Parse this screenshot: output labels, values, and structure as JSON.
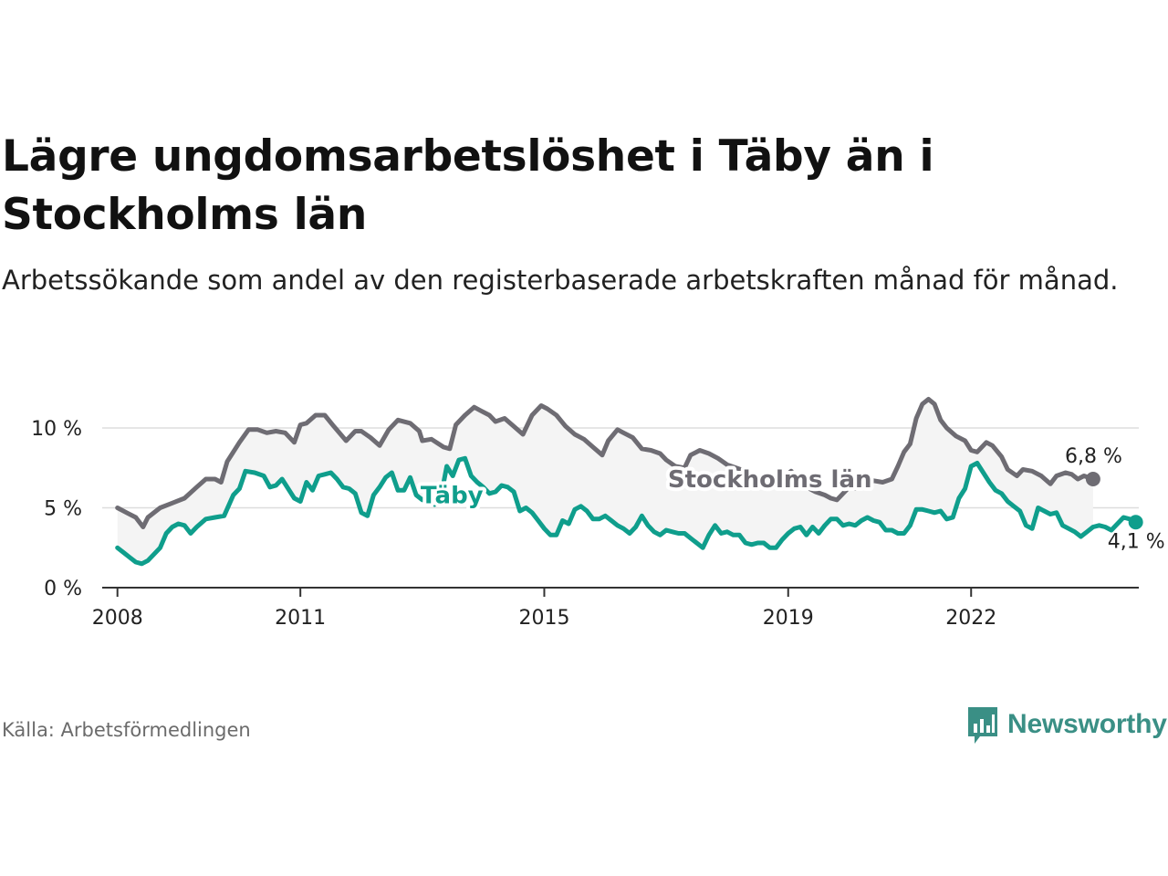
{
  "title": "Lägre ungdomsarbetslöshet i Täby än i Stockholms län",
  "subtitle": "Arbetssökande som andel av den registerbaserade arbetskraften månad för månad.",
  "source": "Källa: Arbetsförmedlingen",
  "brand": "Newsworthy",
  "colors": {
    "stockholm": "#6e6c73",
    "taby": "#0f9e8c",
    "band": "#f4f4f4",
    "grid": "#dddddd",
    "axis": "#333333",
    "brand": "#3a8f85"
  },
  "chart_data": {
    "type": "line",
    "title": "Lägre ungdomsarbetslöshet i Täby än i Stockholms län",
    "xlabel": "",
    "ylabel": "",
    "ylim": [
      0,
      12
    ],
    "xlim": [
      2007.75,
      2024.75
    ],
    "y_ticks": [
      0,
      5,
      10
    ],
    "y_tick_labels": [
      "0 %",
      "5 %",
      "10 %"
    ],
    "x_ticks": [
      2008,
      2011,
      2015,
      2019,
      2022
    ],
    "x_tick_labels": [
      "2008",
      "2011",
      "2015",
      "2019",
      "2022"
    ],
    "series": [
      {
        "name": "Stockholms län",
        "key": "stockholm",
        "end_label": "6,8 %",
        "points": [
          [
            2008.0,
            5.0
          ],
          [
            2008.15,
            4.7
          ],
          [
            2008.3,
            4.4
          ],
          [
            2008.42,
            3.8
          ],
          [
            2008.5,
            4.4
          ],
          [
            2008.7,
            5.0
          ],
          [
            2008.9,
            5.3
          ],
          [
            2009.1,
            5.6
          ],
          [
            2009.3,
            6.3
          ],
          [
            2009.45,
            6.8
          ],
          [
            2009.6,
            6.8
          ],
          [
            2009.7,
            6.6
          ],
          [
            2009.8,
            7.9
          ],
          [
            2010.0,
            9.1
          ],
          [
            2010.15,
            9.9
          ],
          [
            2010.3,
            9.9
          ],
          [
            2010.45,
            9.7
          ],
          [
            2010.6,
            9.8
          ],
          [
            2010.75,
            9.7
          ],
          [
            2010.9,
            9.1
          ],
          [
            2011.0,
            10.2
          ],
          [
            2011.1,
            10.3
          ],
          [
            2011.25,
            10.8
          ],
          [
            2011.4,
            10.8
          ],
          [
            2011.55,
            10.1
          ],
          [
            2011.75,
            9.2
          ],
          [
            2011.9,
            9.8
          ],
          [
            2012.0,
            9.8
          ],
          [
            2012.15,
            9.4
          ],
          [
            2012.3,
            8.9
          ],
          [
            2012.45,
            9.9
          ],
          [
            2012.6,
            10.5
          ],
          [
            2012.8,
            10.3
          ],
          [
            2012.95,
            9.8
          ],
          [
            2013.0,
            9.2
          ],
          [
            2013.15,
            9.3
          ],
          [
            2013.35,
            8.8
          ],
          [
            2013.45,
            8.7
          ],
          [
            2013.55,
            10.2
          ],
          [
            2013.7,
            10.8
          ],
          [
            2013.85,
            11.3
          ],
          [
            2013.95,
            11.1
          ],
          [
            2014.1,
            10.8
          ],
          [
            2014.2,
            10.4
          ],
          [
            2014.35,
            10.6
          ],
          [
            2014.5,
            10.1
          ],
          [
            2014.65,
            9.6
          ],
          [
            2014.8,
            10.8
          ],
          [
            2014.95,
            11.4
          ],
          [
            2015.05,
            11.2
          ],
          [
            2015.2,
            10.8
          ],
          [
            2015.35,
            10.1
          ],
          [
            2015.5,
            9.6
          ],
          [
            2015.65,
            9.3
          ],
          [
            2015.8,
            8.8
          ],
          [
            2015.95,
            8.3
          ],
          [
            2016.05,
            9.2
          ],
          [
            2016.2,
            9.9
          ],
          [
            2016.3,
            9.7
          ],
          [
            2016.45,
            9.4
          ],
          [
            2016.6,
            8.7
          ],
          [
            2016.75,
            8.6
          ],
          [
            2016.9,
            8.4
          ],
          [
            2017.0,
            8.0
          ],
          [
            2017.15,
            7.6
          ],
          [
            2017.3,
            7.5
          ],
          [
            2017.4,
            8.3
          ],
          [
            2017.55,
            8.6
          ],
          [
            2017.7,
            8.4
          ],
          [
            2017.85,
            8.1
          ],
          [
            2018.0,
            7.7
          ],
          [
            2018.15,
            7.5
          ],
          [
            2018.3,
            7.3
          ],
          [
            2018.45,
            7.0
          ],
          [
            2018.6,
            6.9
          ],
          [
            2018.75,
            6.6
          ],
          [
            2018.9,
            6.8
          ],
          [
            2019.05,
            7.3
          ],
          [
            2019.15,
            6.8
          ],
          [
            2019.3,
            6.3
          ],
          [
            2019.45,
            6.0
          ],
          [
            2019.6,
            5.8
          ],
          [
            2019.7,
            5.6
          ],
          [
            2019.8,
            5.5
          ],
          [
            2019.9,
            5.9
          ],
          [
            2020.0,
            6.3
          ],
          [
            2020.1,
            6.2
          ],
          [
            2020.25,
            6.4
          ],
          [
            2020.4,
            6.7
          ],
          [
            2020.55,
            6.6
          ],
          [
            2020.7,
            6.8
          ],
          [
            2020.8,
            7.6
          ],
          [
            2020.9,
            8.5
          ],
          [
            2021.0,
            9.0
          ],
          [
            2021.1,
            10.6
          ],
          [
            2021.2,
            11.5
          ],
          [
            2021.3,
            11.8
          ],
          [
            2021.4,
            11.5
          ],
          [
            2021.5,
            10.5
          ],
          [
            2021.6,
            10.0
          ],
          [
            2021.75,
            9.5
          ],
          [
            2021.9,
            9.2
          ],
          [
            2022.0,
            8.6
          ],
          [
            2022.1,
            8.5
          ],
          [
            2022.25,
            9.1
          ],
          [
            2022.35,
            8.9
          ],
          [
            2022.5,
            8.2
          ],
          [
            2022.6,
            7.4
          ],
          [
            2022.75,
            7.0
          ],
          [
            2022.85,
            7.4
          ],
          [
            2023.0,
            7.3
          ],
          [
            2023.15,
            7.0
          ],
          [
            2023.3,
            6.5
          ],
          [
            2023.4,
            7.0
          ],
          [
            2023.55,
            7.2
          ],
          [
            2023.65,
            7.1
          ],
          [
            2023.75,
            6.8
          ],
          [
            2023.85,
            7.0
          ],
          [
            2024.0,
            6.8
          ]
        ]
      },
      {
        "name": "Täby",
        "key": "taby",
        "end_label": "4,1 %",
        "points": [
          [
            2008.0,
            2.5
          ],
          [
            2008.1,
            2.2
          ],
          [
            2008.2,
            1.9
          ],
          [
            2008.3,
            1.6
          ],
          [
            2008.4,
            1.5
          ],
          [
            2008.5,
            1.7
          ],
          [
            2008.6,
            2.1
          ],
          [
            2008.7,
            2.5
          ],
          [
            2008.8,
            3.4
          ],
          [
            2008.9,
            3.8
          ],
          [
            2009.0,
            4.0
          ],
          [
            2009.1,
            3.9
          ],
          [
            2009.2,
            3.4
          ],
          [
            2009.3,
            3.8
          ],
          [
            2009.45,
            4.3
          ],
          [
            2009.6,
            4.4
          ],
          [
            2009.75,
            4.5
          ],
          [
            2009.9,
            5.8
          ],
          [
            2010.0,
            6.2
          ],
          [
            2010.1,
            7.3
          ],
          [
            2010.25,
            7.2
          ],
          [
            2010.4,
            7.0
          ],
          [
            2010.5,
            6.3
          ],
          [
            2010.6,
            6.4
          ],
          [
            2010.7,
            6.8
          ],
          [
            2010.8,
            6.2
          ],
          [
            2010.9,
            5.6
          ],
          [
            2011.0,
            5.4
          ],
          [
            2011.1,
            6.6
          ],
          [
            2011.2,
            6.1
          ],
          [
            2011.3,
            7.0
          ],
          [
            2011.4,
            7.1
          ],
          [
            2011.5,
            7.2
          ],
          [
            2011.6,
            6.8
          ],
          [
            2011.7,
            6.3
          ],
          [
            2011.8,
            6.2
          ],
          [
            2011.9,
            5.9
          ],
          [
            2012.0,
            4.7
          ],
          [
            2012.1,
            4.5
          ],
          [
            2012.2,
            5.8
          ],
          [
            2012.3,
            6.3
          ],
          [
            2012.4,
            6.9
          ],
          [
            2012.5,
            7.2
          ],
          [
            2012.6,
            6.1
          ],
          [
            2012.7,
            6.1
          ],
          [
            2012.8,
            6.9
          ],
          [
            2012.9,
            5.8
          ],
          [
            2013.0,
            5.5
          ],
          [
            2013.1,
            5.7
          ],
          [
            2013.2,
            5.2
          ],
          [
            2013.3,
            5.6
          ],
          [
            2013.4,
            7.6
          ],
          [
            2013.5,
            7.0
          ],
          [
            2013.6,
            8.0
          ],
          [
            2013.7,
            8.1
          ],
          [
            2013.8,
            7.0
          ],
          [
            2013.9,
            6.6
          ],
          [
            2014.0,
            6.3
          ],
          [
            2014.1,
            5.9
          ],
          [
            2014.2,
            6.0
          ],
          [
            2014.3,
            6.4
          ],
          [
            2014.4,
            6.3
          ],
          [
            2014.5,
            6.0
          ],
          [
            2014.6,
            4.8
          ],
          [
            2014.7,
            5.0
          ],
          [
            2014.8,
            4.7
          ],
          [
            2014.9,
            4.2
          ],
          [
            2015.0,
            3.7
          ],
          [
            2015.1,
            3.3
          ],
          [
            2015.2,
            3.3
          ],
          [
            2015.3,
            4.2
          ],
          [
            2015.4,
            4.0
          ],
          [
            2015.5,
            4.9
          ],
          [
            2015.6,
            5.1
          ],
          [
            2015.7,
            4.8
          ],
          [
            2015.8,
            4.3
          ],
          [
            2015.9,
            4.3
          ],
          [
            2016.0,
            4.5
          ],
          [
            2016.1,
            4.2
          ],
          [
            2016.2,
            3.9
          ],
          [
            2016.3,
            3.7
          ],
          [
            2016.4,
            3.4
          ],
          [
            2016.5,
            3.8
          ],
          [
            2016.6,
            4.5
          ],
          [
            2016.7,
            3.9
          ],
          [
            2016.8,
            3.5
          ],
          [
            2016.9,
            3.3
          ],
          [
            2017.0,
            3.6
          ],
          [
            2017.1,
            3.5
          ],
          [
            2017.2,
            3.4
          ],
          [
            2017.3,
            3.4
          ],
          [
            2017.4,
            3.1
          ],
          [
            2017.5,
            2.8
          ],
          [
            2017.6,
            2.5
          ],
          [
            2017.7,
            3.3
          ],
          [
            2017.8,
            3.9
          ],
          [
            2017.9,
            3.4
          ],
          [
            2018.0,
            3.5
          ],
          [
            2018.1,
            3.3
          ],
          [
            2018.2,
            3.3
          ],
          [
            2018.3,
            2.8
          ],
          [
            2018.4,
            2.7
          ],
          [
            2018.5,
            2.8
          ],
          [
            2018.6,
            2.8
          ],
          [
            2018.7,
            2.5
          ],
          [
            2018.8,
            2.5
          ],
          [
            2018.9,
            3.0
          ],
          [
            2019.0,
            3.4
          ],
          [
            2019.1,
            3.7
          ],
          [
            2019.2,
            3.8
          ],
          [
            2019.3,
            3.3
          ],
          [
            2019.4,
            3.8
          ],
          [
            2019.5,
            3.4
          ],
          [
            2019.6,
            3.9
          ],
          [
            2019.7,
            4.3
          ],
          [
            2019.8,
            4.3
          ],
          [
            2019.9,
            3.9
          ],
          [
            2020.0,
            4.0
          ],
          [
            2020.1,
            3.9
          ],
          [
            2020.2,
            4.2
          ],
          [
            2020.3,
            4.4
          ],
          [
            2020.4,
            4.2
          ],
          [
            2020.5,
            4.1
          ],
          [
            2020.6,
            3.6
          ],
          [
            2020.7,
            3.6
          ],
          [
            2020.8,
            3.4
          ],
          [
            2020.9,
            3.4
          ],
          [
            2021.0,
            3.9
          ],
          [
            2021.1,
            4.9
          ],
          [
            2021.2,
            4.9
          ],
          [
            2021.3,
            4.8
          ],
          [
            2021.4,
            4.7
          ],
          [
            2021.5,
            4.8
          ],
          [
            2021.6,
            4.3
          ],
          [
            2021.7,
            4.4
          ],
          [
            2021.8,
            5.6
          ],
          [
            2021.9,
            6.2
          ],
          [
            2022.0,
            7.6
          ],
          [
            2022.1,
            7.8
          ],
          [
            2022.2,
            7.2
          ],
          [
            2022.3,
            6.6
          ],
          [
            2022.4,
            6.1
          ],
          [
            2022.5,
            5.9
          ],
          [
            2022.6,
            5.4
          ],
          [
            2022.7,
            5.1
          ],
          [
            2022.8,
            4.8
          ],
          [
            2022.9,
            3.9
          ],
          [
            2023.0,
            3.7
          ],
          [
            2023.1,
            5.0
          ],
          [
            2023.2,
            4.8
          ],
          [
            2023.3,
            4.6
          ],
          [
            2023.4,
            4.7
          ],
          [
            2023.5,
            3.9
          ],
          [
            2023.6,
            3.7
          ],
          [
            2023.7,
            3.5
          ],
          [
            2023.8,
            3.2
          ],
          [
            2023.9,
            3.5
          ],
          [
            2024.0,
            3.8
          ],
          [
            2024.1,
            3.9
          ],
          [
            2024.2,
            3.8
          ],
          [
            2024.3,
            3.6
          ],
          [
            2024.4,
            4.0
          ],
          [
            2024.5,
            4.4
          ],
          [
            2024.6,
            4.3
          ],
          [
            2024.7,
            4.1
          ]
        ]
      }
    ],
    "annotations": [
      {
        "text": "Stockholms län",
        "series": "stockholm",
        "anchor_x": 2018.7,
        "value": 6.8
      },
      {
        "text": "Täby",
        "series": "taby",
        "anchor_x": 2014.0,
        "value": 5.8
      }
    ]
  }
}
